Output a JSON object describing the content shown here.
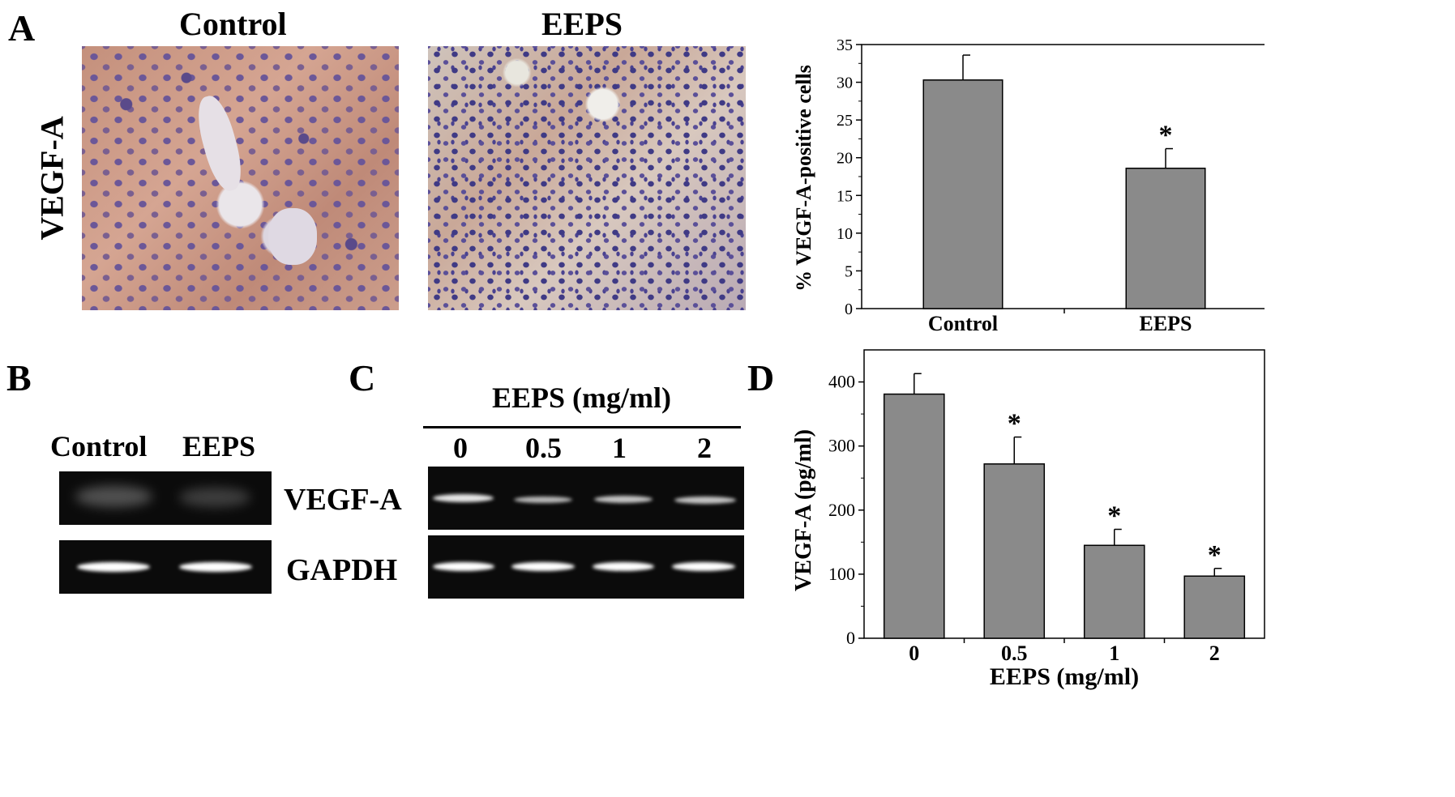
{
  "panel_a": {
    "letter": "A",
    "row_label": "VEGF-A",
    "image_titles": [
      "Control",
      "EEPS"
    ]
  },
  "panel_b": {
    "letter": "B",
    "lane_labels": [
      "Control",
      "EEPS"
    ],
    "row_labels": [
      "VEGF-A",
      "GAPDH"
    ],
    "vegf_intensity": [
      0.55,
      0.4
    ],
    "gapdh_intensity": [
      1.0,
      1.0
    ]
  },
  "panel_c": {
    "letter": "C",
    "header": "EEPS (mg/ml)",
    "lane_labels": [
      "0",
      "0.5",
      "1",
      "2"
    ],
    "vegf_intensity": [
      0.95,
      0.75,
      0.8,
      0.8
    ],
    "gapdh_intensity": [
      1.0,
      1.0,
      1.0,
      1.0
    ]
  },
  "panel_d": {
    "letter": "D"
  },
  "colors": {
    "bar_fill": "#8a8a8a",
    "tissue_pink": "#c89a88",
    "nucleus_purple": "#5a4a8a",
    "gel_background": "#0b0b0b"
  },
  "chart_data": [
    {
      "type": "bar",
      "panel": "A",
      "categories": [
        "Control",
        "EEPS"
      ],
      "values": [
        30.3,
        18.6
      ],
      "errors": [
        3.3,
        2.6
      ],
      "significance": [
        "",
        "*"
      ],
      "xlabel": "",
      "ylabel": "% VEGF-A-positive cells",
      "ylim": [
        0,
        35
      ],
      "yticks": [
        0,
        5,
        10,
        15,
        20,
        25,
        30,
        35
      ],
      "grid": false
    },
    {
      "type": "bar",
      "panel": "D",
      "categories": [
        "0",
        "0.5",
        "1",
        "2"
      ],
      "values": [
        381,
        272,
        145,
        97
      ],
      "errors": [
        32,
        42,
        25,
        12
      ],
      "significance": [
        "",
        "*",
        "*",
        "*"
      ],
      "xlabel": "EEPS (mg/ml)",
      "ylabel": "VEGF-A (pg/ml)",
      "ylim": [
        0,
        450
      ],
      "yticks": [
        0,
        100,
        200,
        300,
        400
      ],
      "grid": false
    }
  ]
}
